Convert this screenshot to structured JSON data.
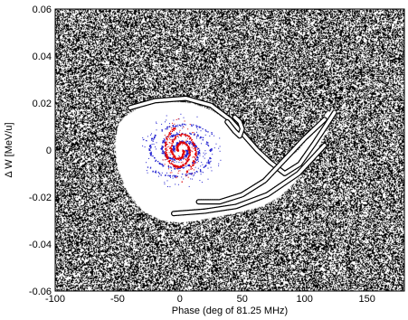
{
  "chart_data": {
    "type": "scatter",
    "title": "",
    "xlabel": "Phase (deg of 81.25 MHz)",
    "ylabel": "Δ W [MeV/u]",
    "xlim": [
      -100,
      180
    ],
    "ylim": [
      -0.06,
      0.06
    ],
    "xticks": [
      -100,
      -50,
      0,
      50,
      100,
      150
    ],
    "yticks": [
      -0.06,
      -0.04,
      -0.02,
      0,
      0.02,
      0.04,
      0.06
    ],
    "xtick_labels": [
      "-100",
      "-50",
      "0",
      "50",
      "100",
      "150"
    ],
    "ytick_labels": [
      "-0.06",
      "-0.04",
      "-0.02",
      "0",
      "0.02",
      "0.04",
      "0.06"
    ],
    "grid": false,
    "legend": "none",
    "colors": {
      "background_particles": "#000000",
      "bunch_red": "#e00000",
      "bunch_blue": "#2020d0"
    },
    "series": [
      {
        "role": "phase-space background particles",
        "color": "#000000",
        "fills_axes": true,
        "empty_regions": [
          {
            "shape": "stable bucket (fish shape)",
            "boundary": [
              [
                -45,
                0.014
              ],
              [
                -30,
                0.019
              ],
              [
                -10,
                0.021
              ],
              [
                10,
                0.02
              ],
              [
                25,
                0.017
              ],
              [
                38,
                0.013
              ],
              [
                48,
                0.008
              ],
              [
                58,
                0.002
              ],
              [
                68,
                -0.003
              ],
              [
                80,
                -0.006
              ],
              [
                95,
                0.0
              ],
              [
                110,
                0.01
              ],
              [
                118,
                0.016
              ],
              [
                124,
                0.017
              ],
              [
                122,
                0.013
              ],
              [
                114,
                0.004
              ],
              [
                104,
                -0.006
              ],
              [
                92,
                -0.014
              ],
              [
                80,
                -0.02
              ],
              [
                66,
                -0.024
              ],
              [
                52,
                -0.026
              ],
              [
                35,
                -0.028
              ],
              [
                15,
                -0.03
              ],
              [
                0,
                -0.031
              ],
              [
                -15,
                -0.03
              ],
              [
                -30,
                -0.026
              ],
              [
                -42,
                -0.018
              ],
              [
                -50,
                -0.008
              ],
              [
                -52,
                0.002
              ],
              [
                -50,
                0.01
              ]
            ]
          }
        ],
        "filamentary_arms": [
          [
            [
              -40,
              0.018
            ],
            [
              -20,
              0.021
            ],
            [
              5,
              0.022
            ],
            [
              25,
              0.019
            ],
            [
              40,
              0.013
            ],
            [
              52,
              0.006
            ],
            [
              62,
              0.0
            ],
            [
              72,
              -0.005
            ],
            [
              84,
              -0.01
            ],
            [
              96,
              -0.006
            ],
            [
              108,
              0.003
            ],
            [
              118,
              0.011
            ],
            [
              124,
              0.016
            ]
          ],
          [
            [
              38,
              0.012
            ],
            [
              44,
              0.008
            ],
            [
              48,
              0.006
            ],
            [
              50,
              0.009
            ],
            [
              48,
              0.012
            ],
            [
              44,
              0.014
            ]
          ],
          [
            [
              15,
              -0.022
            ],
            [
              32,
              -0.022
            ],
            [
              50,
              -0.019
            ],
            [
              68,
              -0.013
            ],
            [
              84,
              -0.004
            ],
            [
              100,
              0.005
            ],
            [
              116,
              0.013
            ]
          ],
          [
            [
              -5,
              -0.027
            ],
            [
              20,
              -0.026
            ],
            [
              45,
              -0.024
            ],
            [
              70,
              -0.019
            ],
            [
              95,
              -0.01
            ],
            [
              116,
              0.002
            ]
          ]
        ]
      },
      {
        "role": "bunch core",
        "color": "#e00000",
        "center": [
          0,
          0.0
        ],
        "shape": "spiral",
        "radial_extent_x": 14,
        "radial_extent_y": 0.01
      },
      {
        "role": "bunch halo spiral arms",
        "color": "#2020d0",
        "center": [
          0,
          0.0
        ],
        "shape": "spiral",
        "radial_extent_x": 32,
        "radial_extent_y": 0.012
      }
    ]
  }
}
